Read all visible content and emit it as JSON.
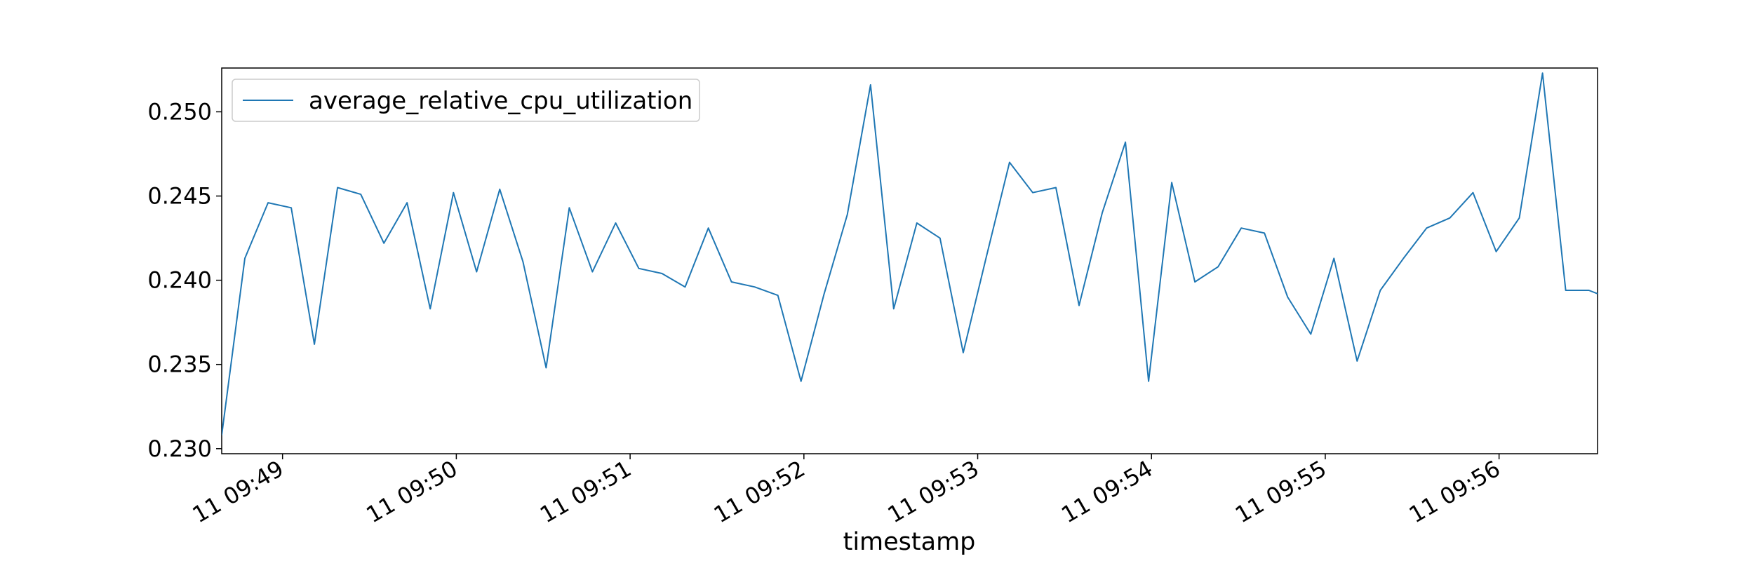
{
  "chart_data": {
    "type": "line",
    "xlabel": "timestamp",
    "ylabel": "",
    "title": "",
    "grid": false,
    "legend_position": "upper left",
    "colors": {
      "series": "#1f77b4"
    },
    "xlim": [
      "11 09:48:39",
      "11 09:56:34"
    ],
    "ylim": [
      0.2297,
      0.2526
    ],
    "x_tick_labels": [
      "11 09:49",
      "11 09:50",
      "11 09:51",
      "11 09:52",
      "11 09:53",
      "11 09:54",
      "11 09:55",
      "11 09:56"
    ],
    "x_tick_minutes": [
      49,
      50,
      51,
      52,
      53,
      54,
      55,
      56
    ],
    "y_ticks": [
      0.23,
      0.235,
      0.24,
      0.245,
      0.25
    ],
    "y_tick_labels": [
      "0.230",
      "0.235",
      "0.240",
      "0.245",
      "0.250"
    ],
    "series": [
      {
        "name": "average_relative_cpu_utilization",
        "x": [
          "11 09:48:39",
          "11 09:48:47",
          "11 09:48:55",
          "11 09:49:03",
          "11 09:49:11",
          "11 09:49:19",
          "11 09:49:27",
          "11 09:49:35",
          "11 09:49:43",
          "11 09:49:51",
          "11 09:49:59",
          "11 09:50:07",
          "11 09:50:15",
          "11 09:50:23",
          "11 09:50:31",
          "11 09:50:39",
          "11 09:50:47",
          "11 09:50:55",
          "11 09:51:03",
          "11 09:51:11",
          "11 09:51:19",
          "11 09:51:27",
          "11 09:51:35",
          "11 09:51:43",
          "11 09:51:51",
          "11 09:51:59",
          "11 09:52:07",
          "11 09:52:15",
          "11 09:52:23",
          "11 09:52:31",
          "11 09:52:39",
          "11 09:52:47",
          "11 09:52:55",
          "11 09:53:03",
          "11 09:53:11",
          "11 09:53:19",
          "11 09:53:27",
          "11 09:53:35",
          "11 09:53:43",
          "11 09:53:51",
          "11 09:53:59",
          "11 09:54:07",
          "11 09:54:15",
          "11 09:54:23",
          "11 09:54:31",
          "11 09:54:39",
          "11 09:54:47",
          "11 09:54:55",
          "11 09:55:03",
          "11 09:55:11",
          "11 09:55:19",
          "11 09:55:27",
          "11 09:55:35",
          "11 09:55:43",
          "11 09:55:51",
          "11 09:55:59",
          "11 09:56:07",
          "11 09:56:15",
          "11 09:56:23",
          "11 09:56:31",
          "11 09:56:34"
        ],
        "values": [
          0.2308,
          0.2413,
          0.2446,
          0.2443,
          0.2362,
          0.2455,
          0.2451,
          0.2422,
          0.2446,
          0.2383,
          0.2452,
          0.2405,
          0.2454,
          0.2411,
          0.2348,
          0.2443,
          0.2405,
          0.2434,
          0.2407,
          0.2404,
          0.2396,
          0.2431,
          0.2399,
          0.2396,
          0.2391,
          0.234,
          0.2392,
          0.2439,
          0.2516,
          0.2383,
          0.2434,
          0.2425,
          0.2357,
          0.2414,
          0.247,
          0.2452,
          0.2455,
          0.2385,
          0.244,
          0.2482,
          0.234,
          0.2458,
          0.2399,
          0.2408,
          0.2431,
          0.2428,
          0.239,
          0.2368,
          0.2413,
          0.2352,
          0.2394,
          0.2413,
          0.2431,
          0.2437,
          0.2452,
          0.2417,
          0.2437,
          0.2523,
          0.2394,
          0.2394,
          0.2392
        ]
      }
    ]
  }
}
